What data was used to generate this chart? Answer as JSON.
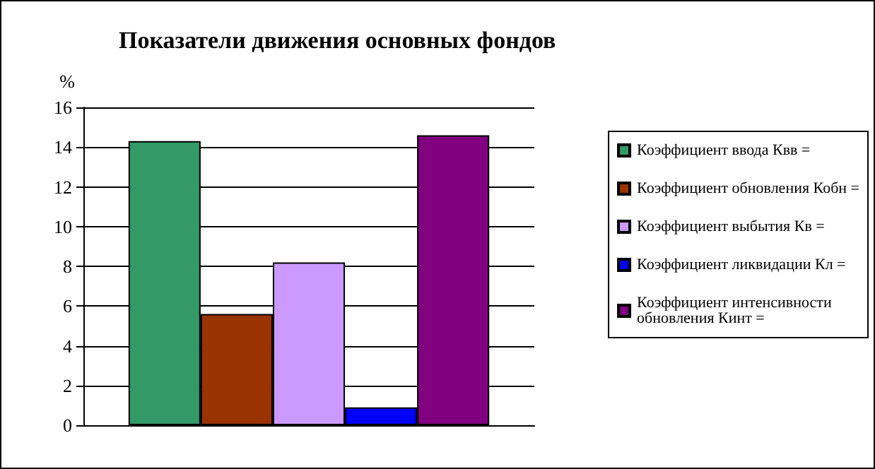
{
  "chart_data": {
    "type": "bar",
    "title": "Показатели движения основных фондов",
    "ylabel": "%",
    "categories": [
      null
    ],
    "series": [
      {
        "name": "Коэффициент ввода Квв =",
        "color": "#339966",
        "values": [
          14.3
        ]
      },
      {
        "name": "Коэффициент обновления Кобн =",
        "color": "#993300",
        "values": [
          5.6
        ]
      },
      {
        "name": "Коэффициент выбытия Кв =",
        "color": "#cc99ff",
        "values": [
          8.2
        ]
      },
      {
        "name": "Коэффициент ликвидации Кл =",
        "color": "#0000ff",
        "values": [
          0.9
        ]
      },
      {
        "name": "Коэффициент интенсивности обновления Кинт =",
        "color": "#800080",
        "values": [
          14.6
        ]
      }
    ],
    "ylim": [
      0,
      16
    ],
    "yticks": [
      0,
      2,
      4,
      6,
      8,
      10,
      12,
      14,
      16
    ],
    "grid": "y",
    "legend": "right"
  }
}
